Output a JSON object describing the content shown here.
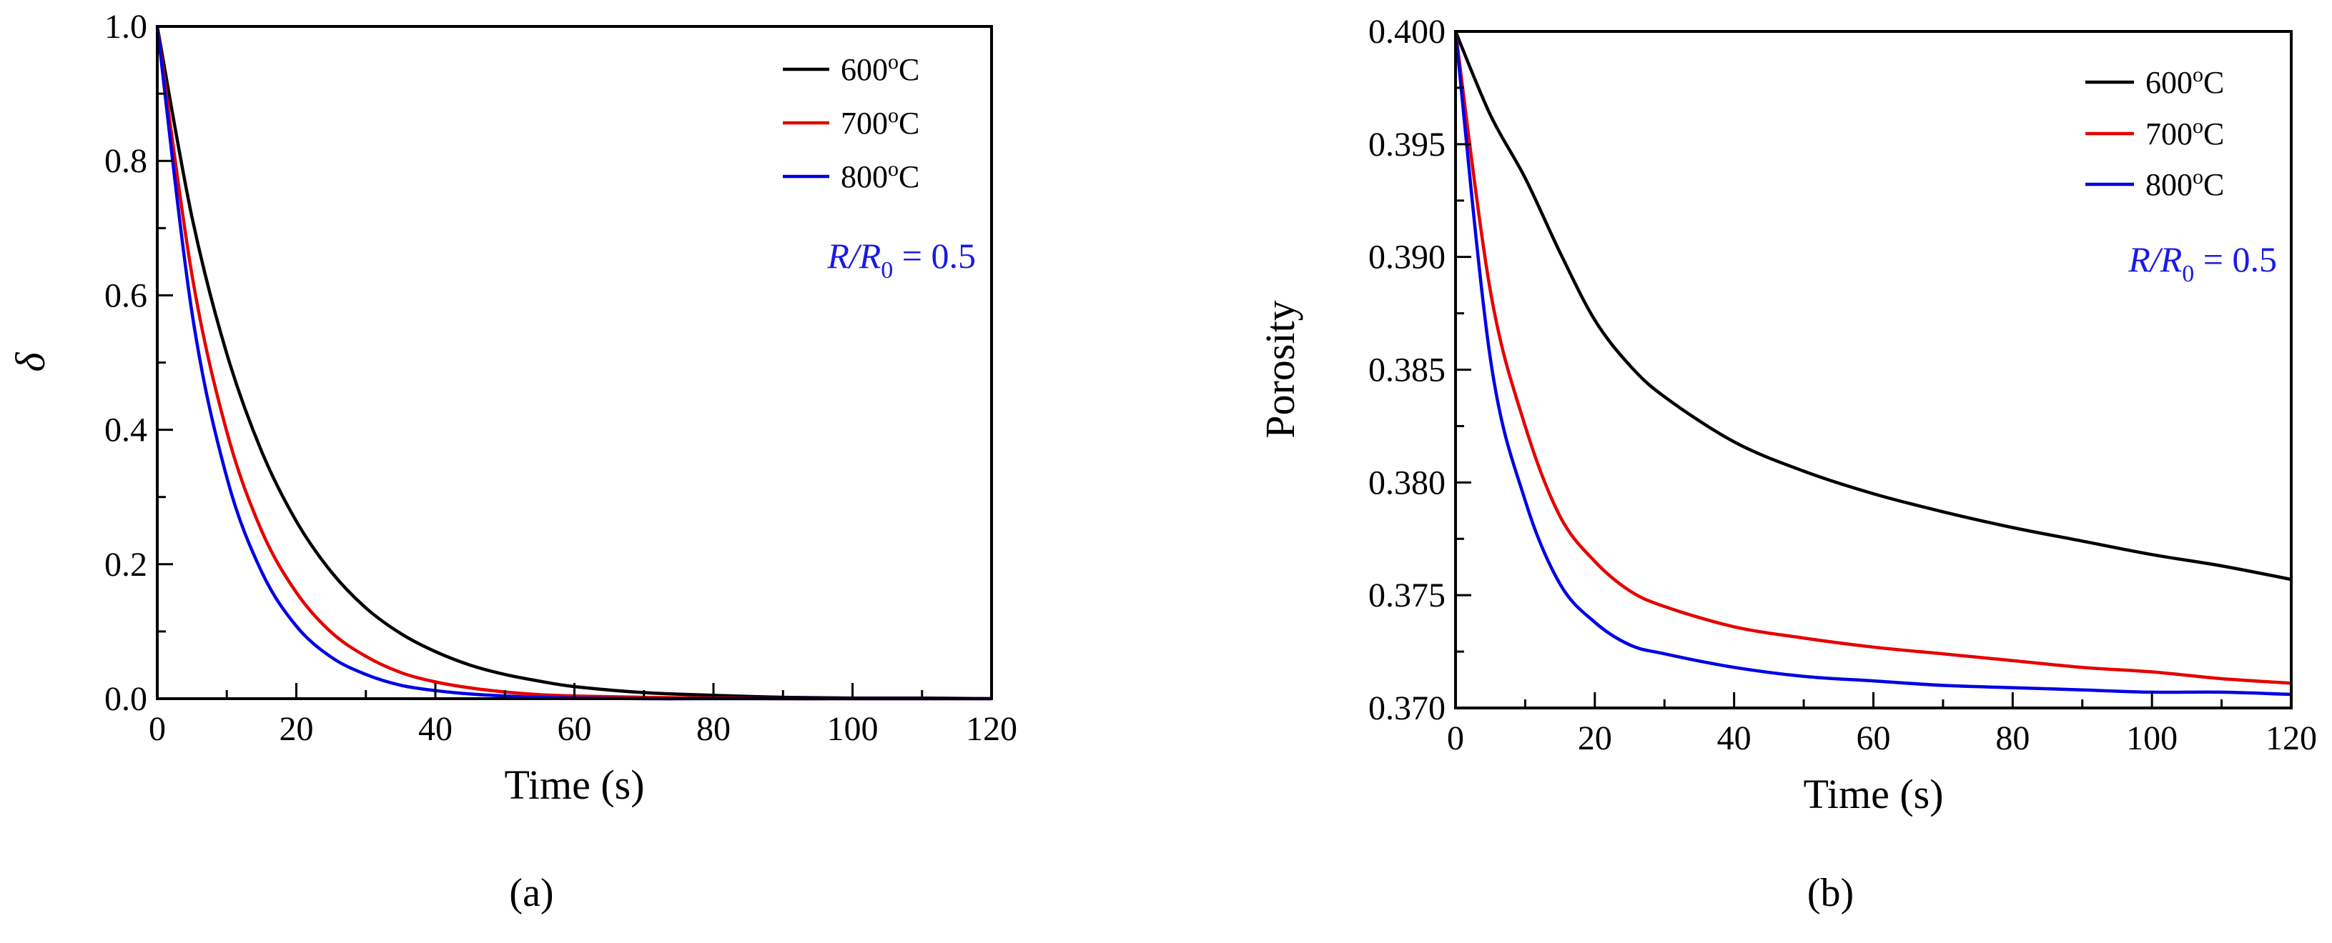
{
  "chart_data": [
    {
      "type": "line",
      "panel_label": "(a)",
      "xlabel": "Time (s)",
      "ylabel": "δ",
      "xlim": [
        0,
        120
      ],
      "ylim": [
        0.0,
        1.0
      ],
      "x_major_ticks": [
        0,
        20,
        40,
        60,
        80,
        100,
        120
      ],
      "x_tick_labels": [
        "0",
        "20",
        "40",
        "60",
        "80",
        "100",
        "120"
      ],
      "y_major_ticks": [
        0.0,
        0.2,
        0.4,
        0.6,
        0.8,
        1.0
      ],
      "y_tick_labels": [
        "0.0",
        "0.2",
        "0.4",
        "0.6",
        "0.8",
        "1.0"
      ],
      "grid": false,
      "legend_position": "top-right",
      "annotation": {
        "main": "R/R",
        "sub": "0",
        "rest": " = 0.5",
        "color": "#1a1ae6"
      },
      "series": [
        {
          "name": "600",
          "unit": "oC",
          "color": "#000000",
          "x": [
            0,
            5,
            10,
            15,
            20,
            25,
            30,
            35,
            40,
            45,
            50,
            55,
            60,
            70,
            80,
            90,
            100,
            110,
            120
          ],
          "values": [
            1.0,
            0.716,
            0.513,
            0.368,
            0.264,
            0.189,
            0.135,
            0.097,
            0.07,
            0.05,
            0.036,
            0.026,
            0.018,
            0.009,
            0.005,
            0.002,
            0.001,
            0.001,
            0.0
          ]
        },
        {
          "name": "700",
          "unit": "oC",
          "color": "#e60000",
          "x": [
            0,
            5,
            10,
            15,
            20,
            25,
            30,
            35,
            40,
            45,
            50,
            55,
            60,
            70,
            80,
            90,
            100,
            110,
            120
          ],
          "values": [
            1.0,
            0.63,
            0.397,
            0.25,
            0.158,
            0.099,
            0.063,
            0.039,
            0.025,
            0.016,
            0.01,
            0.006,
            0.004,
            0.002,
            0.001,
            0.0,
            0.0,
            0.0,
            0.0
          ]
        },
        {
          "name": "800",
          "unit": "oC",
          "color": "#0000e6",
          "x": [
            0,
            5,
            10,
            15,
            20,
            25,
            30,
            35,
            40,
            45,
            50,
            55,
            60,
            70,
            80,
            90,
            100,
            110,
            120
          ],
          "values": [
            1.0,
            0.574,
            0.329,
            0.189,
            0.108,
            0.062,
            0.036,
            0.02,
            0.012,
            0.007,
            0.004,
            0.002,
            0.001,
            0.0,
            0.0,
            0.0,
            0.0,
            0.0,
            0.0
          ]
        }
      ]
    },
    {
      "type": "line",
      "panel_label": "(b)",
      "xlabel": "Time (s)",
      "ylabel": "Porosity",
      "xlim": [
        0,
        120
      ],
      "ylim": [
        0.37,
        0.4
      ],
      "x_major_ticks": [
        0,
        20,
        40,
        60,
        80,
        100,
        120
      ],
      "x_tick_labels": [
        "0",
        "20",
        "40",
        "60",
        "80",
        "100",
        "120"
      ],
      "y_major_ticks": [
        0.37,
        0.375,
        0.38,
        0.385,
        0.39,
        0.395,
        0.4
      ],
      "y_tick_labels": [
        "0.370",
        "0.375",
        "0.380",
        "0.385",
        "0.390",
        "0.395",
        "0.400"
      ],
      "grid": false,
      "legend_position": "top-right",
      "annotation": {
        "main": "R/R",
        "sub": "0",
        "rest": " = 0.5",
        "color": "#1a1ae6"
      },
      "series": [
        {
          "name": "600",
          "unit": "oC",
          "color": "#000000",
          "x": [
            0,
            5,
            10,
            15,
            20,
            25,
            30,
            40,
            50,
            60,
            70,
            80,
            90,
            100,
            110,
            120
          ],
          "values": [
            0.4,
            0.3963,
            0.3935,
            0.3902,
            0.3872,
            0.3852,
            0.3838,
            0.3818,
            0.3805,
            0.3795,
            0.3787,
            0.378,
            0.3774,
            0.3768,
            0.3763,
            0.3757
          ]
        },
        {
          "name": "700",
          "unit": "oC",
          "color": "#e60000",
          "x": [
            0,
            5,
            10,
            15,
            20,
            25,
            30,
            40,
            50,
            60,
            70,
            80,
            90,
            100,
            110,
            120
          ],
          "values": [
            0.4,
            0.3885,
            0.3825,
            0.3785,
            0.3765,
            0.3752,
            0.3745,
            0.3736,
            0.3731,
            0.3727,
            0.3724,
            0.3721,
            0.3718,
            0.3716,
            0.3713,
            0.3711
          ]
        },
        {
          "name": "800",
          "unit": "oC",
          "color": "#0000e6",
          "x": [
            0,
            5,
            10,
            15,
            20,
            25,
            30,
            40,
            50,
            60,
            70,
            80,
            90,
            100,
            110,
            120
          ],
          "values": [
            0.4,
            0.3855,
            0.3792,
            0.3755,
            0.3738,
            0.3728,
            0.3724,
            0.3718,
            0.3714,
            0.3712,
            0.371,
            0.3709,
            0.3708,
            0.3707,
            0.3707,
            0.3706
          ]
        }
      ]
    }
  ]
}
